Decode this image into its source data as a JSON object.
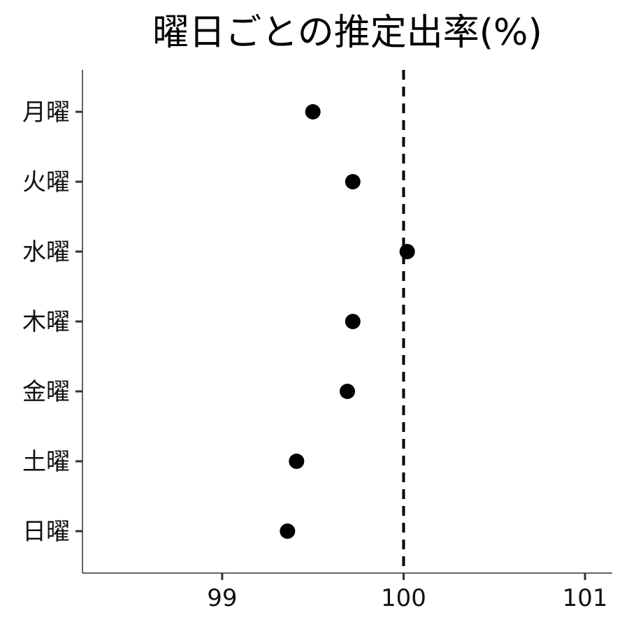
{
  "chart_data": {
    "type": "scatter",
    "title": "曜日ごとの推定出率(%)",
    "xlabel": "",
    "ylabel": "",
    "categories": [
      "月曜",
      "火曜",
      "水曜",
      "木曜",
      "金曜",
      "土曜",
      "日曜"
    ],
    "values": [
      99.5,
      99.72,
      100.02,
      99.72,
      99.69,
      99.41,
      99.36
    ],
    "xlim": [
      98.23,
      101.15
    ],
    "xticks": [
      99,
      100,
      101
    ],
    "xtick_labels": [
      "99",
      "100",
      "101"
    ],
    "reference_line": {
      "x": 100,
      "style": "dashed"
    },
    "grid": false,
    "legend": "none",
    "colors": {
      "point": "#000000",
      "axis": "#333333",
      "reference": "#000000"
    }
  }
}
